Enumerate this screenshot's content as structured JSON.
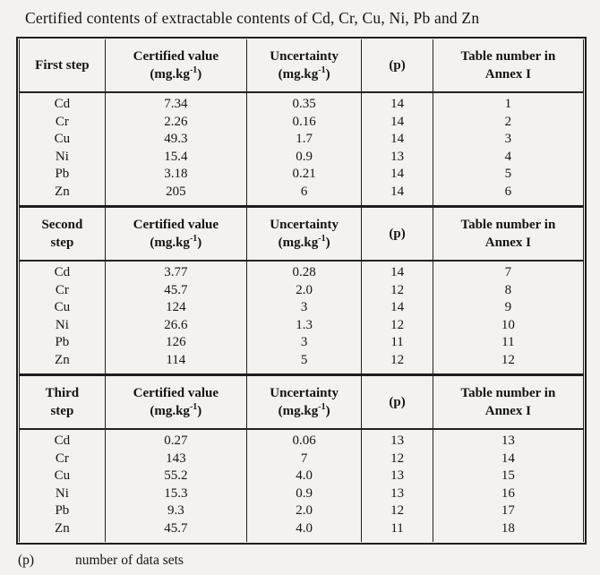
{
  "page": {
    "title": "Certified contents of extractable contents of Cd, Cr, Cu, Ni, Pb and Zn",
    "footnote": {
      "symbol": "(p)",
      "text": "number of data sets"
    }
  },
  "table": {
    "header": {
      "certified_value": "Certified value",
      "uncertainty": "Uncertainty",
      "unit_prefix": "(mg.kg",
      "unit_sup": "-1",
      "unit_suffix": ")",
      "p": "(p)",
      "annex_line1": "Table number in",
      "annex_line2": "Annex I"
    },
    "sections": [
      {
        "step": {
          "line1": "First step",
          "line2": ""
        },
        "rows": [
          {
            "element": "Cd",
            "certified_value": "7.34",
            "uncertainty": "0.35",
            "p": "14",
            "table_number": "1"
          },
          {
            "element": "Cr",
            "certified_value": "2.26",
            "uncertainty": "0.16",
            "p": "14",
            "table_number": "2"
          },
          {
            "element": "Cu",
            "certified_value": "49.3",
            "uncertainty": "1.7",
            "p": "14",
            "table_number": "3"
          },
          {
            "element": "Ni",
            "certified_value": "15.4",
            "uncertainty": "0.9",
            "p": "13",
            "table_number": "4"
          },
          {
            "element": "Pb",
            "certified_value": "3.18",
            "uncertainty": "0.21",
            "p": "14",
            "table_number": "5"
          },
          {
            "element": "Zn",
            "certified_value": "205",
            "uncertainty": "6",
            "p": "14",
            "table_number": "6"
          }
        ]
      },
      {
        "step": {
          "line1": "Second",
          "line2": "step"
        },
        "rows": [
          {
            "element": "Cd",
            "certified_value": "3.77",
            "uncertainty": "0.28",
            "p": "14",
            "table_number": "7"
          },
          {
            "element": "Cr",
            "certified_value": "45.7",
            "uncertainty": "2.0",
            "p": "12",
            "table_number": "8"
          },
          {
            "element": "Cu",
            "certified_value": "124",
            "uncertainty": "3",
            "p": "14",
            "table_number": "9"
          },
          {
            "element": "Ni",
            "certified_value": "26.6",
            "uncertainty": "1.3",
            "p": "12",
            "table_number": "10"
          },
          {
            "element": "Pb",
            "certified_value": "126",
            "uncertainty": "3",
            "p": "11",
            "table_number": "11"
          },
          {
            "element": "Zn",
            "certified_value": "114",
            "uncertainty": "5",
            "p": "12",
            "table_number": "12"
          }
        ]
      },
      {
        "step": {
          "line1": "Third",
          "line2": "step"
        },
        "rows": [
          {
            "element": "Cd",
            "certified_value": "0.27",
            "uncertainty": "0.06",
            "p": "13",
            "table_number": "13"
          },
          {
            "element": "Cr",
            "certified_value": "143",
            "uncertainty": "7",
            "p": "12",
            "table_number": "14"
          },
          {
            "element": "Cu",
            "certified_value": "55.2",
            "uncertainty": "4.0",
            "p": "13",
            "table_number": "15"
          },
          {
            "element": "Ni",
            "certified_value": "15.3",
            "uncertainty": "0.9",
            "p": "13",
            "table_number": "16"
          },
          {
            "element": "Pb",
            "certified_value": "9.3",
            "uncertainty": "2.0",
            "p": "12",
            "table_number": "17"
          },
          {
            "element": "Zn",
            "certified_value": "45.7",
            "uncertainty": "4.0",
            "p": "11",
            "table_number": "18"
          }
        ]
      }
    ]
  }
}
